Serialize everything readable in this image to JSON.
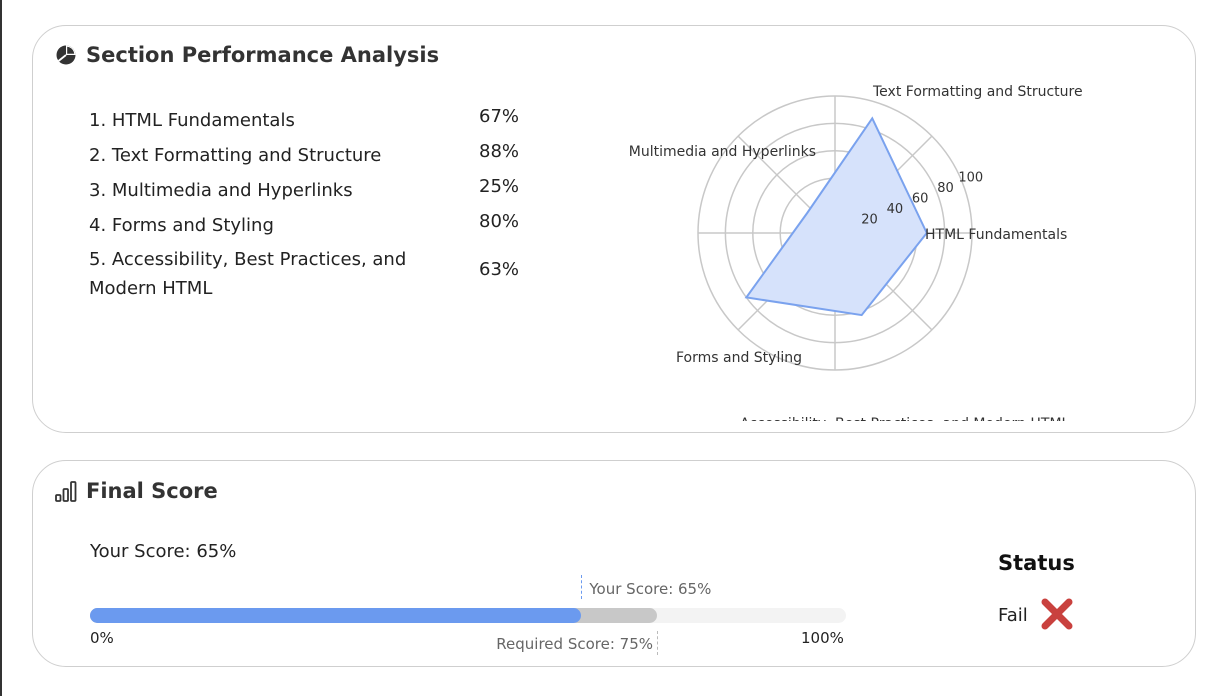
{
  "section_performance": {
    "title": "Section Performance Analysis",
    "icon": "pie-chart-icon",
    "items": [
      {
        "label": "1. HTML Fundamentals",
        "percent": "67%"
      },
      {
        "label": "2. Text Formatting and Structure",
        "percent": "88%"
      },
      {
        "label": "3. Multimedia and Hyperlinks",
        "percent": "25%"
      },
      {
        "label": "4. Forms and Styling",
        "percent": "80%"
      },
      {
        "label": "5. Accessibility, Best Practices, and Modern HTML",
        "percent": "63%"
      }
    ]
  },
  "chart_data": {
    "type": "radar",
    "categories": [
      "HTML Fundamentals",
      "Text Formatting and Structure",
      "Multimedia and Hyperlinks",
      "Forms and Styling",
      "Accessibility, Best Practices, and Modern HTML"
    ],
    "values": [
      67,
      88,
      25,
      80,
      63
    ],
    "rlim": [
      0,
      100
    ],
    "rticks": [
      "20",
      "40",
      "60",
      "80",
      "100"
    ],
    "grid": true,
    "fill_color": "#d6e2fb",
    "line_color": "#7aa2ee"
  },
  "final_score": {
    "title": "Final Score",
    "icon": "bar-chart-icon",
    "score_label": "Your Score: 65%",
    "score_value": 65,
    "required_value": 75,
    "marker_score_label": "Your Score: 65%",
    "marker_required_label": "Required Score: 75%",
    "min_label": "0%",
    "max_label": "100%",
    "score_color": "#6b9aef",
    "required_color": "#c8c8c8"
  },
  "status": {
    "heading": "Status",
    "value": "Fail",
    "icon": "x-mark-icon",
    "icon_color": "#c9413e"
  }
}
